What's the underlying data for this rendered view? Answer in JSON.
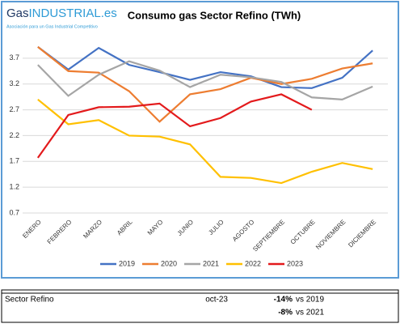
{
  "logo": {
    "name_a": "Gas",
    "name_b": "INDUSTRIAL.es",
    "tagline": "Asociación para un Gas Industrial Competitivo"
  },
  "chart_data": {
    "type": "line",
    "title": "Consumo gas Sector Refino (TWh)",
    "categories": [
      "ENERO",
      "FEBRERO",
      "MARZO",
      "ABRIL",
      "MAYO",
      "JUNIO",
      "JULIO",
      "AGOSTO",
      "SEPTIEMBRE",
      "OCTUBRE",
      "NOVIEMBRE",
      "DICIEMBRE"
    ],
    "series": [
      {
        "name": "2019",
        "color": "#4472c4",
        "values": [
          3.92,
          3.48,
          3.9,
          3.57,
          3.43,
          3.28,
          3.43,
          3.35,
          3.14,
          3.12,
          3.32,
          3.85
        ]
      },
      {
        "name": "2020",
        "color": "#ed7d31",
        "values": [
          3.92,
          3.45,
          3.42,
          3.06,
          2.47,
          3.0,
          3.1,
          3.32,
          3.2,
          3.3,
          3.5,
          3.6
        ]
      },
      {
        "name": "2021",
        "color": "#a5a5a5",
        "values": [
          3.57,
          2.97,
          3.38,
          3.64,
          3.46,
          3.14,
          3.38,
          3.33,
          3.24,
          2.94,
          2.9,
          3.15
        ]
      },
      {
        "name": "2022",
        "color": "#ffc000",
        "values": [
          2.9,
          2.42,
          2.5,
          2.2,
          2.18,
          2.03,
          1.4,
          1.38,
          1.28,
          1.5,
          1.67,
          1.55
        ]
      },
      {
        "name": "2023",
        "color": "#e31a1c",
        "values": [
          1.77,
          2.6,
          2.75,
          2.76,
          2.82,
          2.38,
          2.54,
          2.86,
          3.0,
          2.7,
          null,
          null
        ]
      }
    ],
    "ylim": [
      0.7,
      4.2
    ],
    "yticks": [
      0.7,
      1.2,
      1.7,
      2.2,
      2.7,
      3.2,
      3.7
    ],
    "grid": true,
    "legend": "bottom"
  },
  "table": {
    "label": "Sector Refino",
    "period": "oct-23",
    "comparisons": [
      {
        "change": "-14%",
        "ref": "vs 2019"
      },
      {
        "change": "-8%",
        "ref": "vs 2021"
      }
    ]
  }
}
